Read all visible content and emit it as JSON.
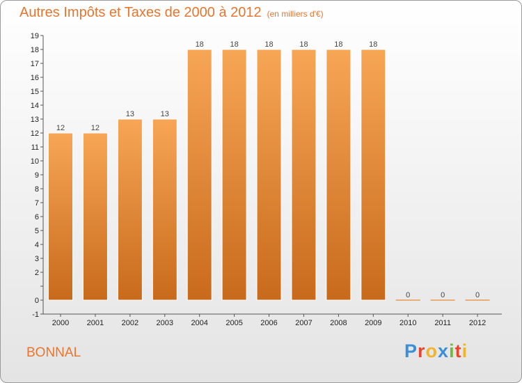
{
  "header": {
    "title": "Autres Impôts et Taxes de 2000 à 2012",
    "subtitle": "(en milliers d'€)"
  },
  "footer": {
    "commune": "BONNAL",
    "logo": "Proxiti"
  },
  "logo_colors": [
    "#3a8fd6",
    "#e8452e",
    "#f2b42a",
    "#3a8fd6",
    "#6fba3a",
    "#e8452e",
    "#f2b42a"
  ],
  "colors": {
    "bar_light": "#f7a656",
    "bar_dark": "#c86a1c",
    "zero_bar": "#e89a4e",
    "title": "#e8752e"
  },
  "chart_data": {
    "type": "bar",
    "title": "Autres Impôts et Taxes de 2000 à 2012",
    "subtitle": "(en milliers d'€)",
    "xlabel": "",
    "ylabel": "",
    "categories": [
      "2000",
      "2001",
      "2002",
      "2003",
      "2004",
      "2005",
      "2006",
      "2007",
      "2008",
      "2009",
      "2010",
      "2011",
      "2012"
    ],
    "values": [
      12,
      12,
      13,
      13,
      18,
      18,
      18,
      18,
      18,
      18,
      0,
      0,
      0
    ],
    "data_labels": [
      "12",
      "12",
      "13",
      "13",
      "18",
      "18",
      "18",
      "18",
      "18",
      "18",
      "0",
      "0",
      "0"
    ],
    "ylim": [
      -1,
      19
    ],
    "y_ticks": [
      "-1",
      "0",
      "",
      "2",
      "3",
      "4",
      "5",
      "6",
      "7",
      "8",
      "9",
      "10",
      "11",
      "12",
      "13",
      "14",
      "15",
      "16",
      "17",
      "18",
      "19"
    ],
    "grid": false,
    "legend": "none"
  }
}
